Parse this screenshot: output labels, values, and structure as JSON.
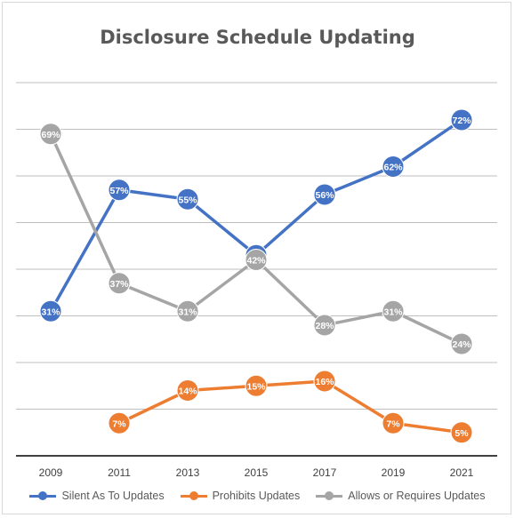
{
  "chart_data": {
    "type": "line",
    "title": "Disclosure Schedule Updating",
    "categories": [
      "2009",
      "2011",
      "2013",
      "2015",
      "2017",
      "2019",
      "2021"
    ],
    "ylim": [
      0,
      0.8
    ],
    "grid": true,
    "legend_position": "bottom",
    "series": [
      {
        "name": "Silent As To Updates",
        "color": "#4472c4",
        "values": [
          0.31,
          0.57,
          0.55,
          0.43,
          0.56,
          0.62,
          0.72
        ],
        "labels": [
          "31%",
          "57%",
          "55%",
          "43%",
          "56%",
          "62%",
          "72%"
        ]
      },
      {
        "name": "Prohibits Updates",
        "color": "#ed7d31",
        "values": [
          null,
          0.07,
          0.14,
          0.15,
          0.16,
          0.07,
          0.05
        ],
        "labels": [
          null,
          "7%",
          "14%",
          "15%",
          "16%",
          "7%",
          "5%"
        ]
      },
      {
        "name": "Allows or Requires Updates",
        "color": "#a5a5a5",
        "values": [
          0.69,
          0.37,
          0.31,
          0.42,
          0.28,
          0.31,
          0.24
        ],
        "labels": [
          "69%",
          "37%",
          "31%",
          "42%",
          "28%",
          "31%",
          "24%"
        ]
      }
    ]
  }
}
